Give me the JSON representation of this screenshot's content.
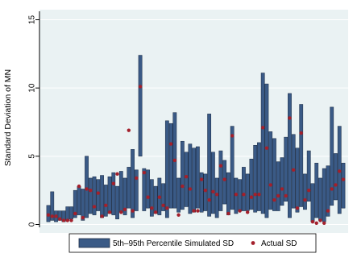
{
  "chart_data": {
    "type": "bar",
    "ylabel": "Standard Deviation of MN",
    "xlabel": "",
    "title": "",
    "ylim": [
      0,
      15
    ],
    "yticks": [
      "0",
      "5",
      "10",
      "15"
    ],
    "grid": true,
    "legend_position": "bottom",
    "colors": {
      "bar_fill": "#3a5a86",
      "bar_stroke": "#1c2c44",
      "point": "#a3202c",
      "plot_bg": "#eaf2f3",
      "grid": "#ffffff"
    },
    "series": [
      {
        "name": "5th–95th Percentile Simulated SD",
        "kind": "range"
      },
      {
        "name": "Actual SD",
        "kind": "point"
      }
    ],
    "bars": [
      [
        0.2,
        1.4,
        0.7
      ],
      [
        0.3,
        2.4,
        0.6
      ],
      [
        0.2,
        1.0,
        0.6
      ],
      [
        0.3,
        1.0,
        0.4
      ],
      [
        0.2,
        1.0,
        0.3
      ],
      [
        0.3,
        1.3,
        0.3
      ],
      [
        0.4,
        1.3,
        0.3
      ],
      [
        0.5,
        2.5,
        0.8
      ],
      [
        0.7,
        2.8,
        2.8
      ],
      [
        0.3,
        2.6,
        0.5
      ],
      [
        0.5,
        5.0,
        2.6
      ],
      [
        0.8,
        3.4,
        2.5
      ],
      [
        0.7,
        3.5,
        1.3
      ],
      [
        1.0,
        3.3,
        2.3
      ],
      [
        0.5,
        3.6,
        0.6
      ],
      [
        0.6,
        2.9,
        1.4
      ],
      [
        0.8,
        3.5,
        0.9
      ],
      [
        0.7,
        3.8,
        3.0
      ],
      [
        0.4,
        2.8,
        3.7
      ],
      [
        0.9,
        3.9,
        0.9
      ],
      [
        0.7,
        3.4,
        1.1
      ],
      [
        1.2,
        4.2,
        6.9
      ],
      [
        0.5,
        5.5,
        1.0
      ],
      [
        1.0,
        4.0,
        3.4
      ],
      [
        5.0,
        12.4,
        10.1
      ],
      [
        1.0,
        4.1,
        3.8
      ],
      [
        1.2,
        4.0,
        2.0
      ],
      [
        0.6,
        3.3,
        1.2
      ],
      [
        0.8,
        2.8,
        0.9
      ],
      [
        0.7,
        3.4,
        2.0
      ],
      [
        1.0,
        3.0,
        1.4
      ],
      [
        0.5,
        7.6,
        1.2
      ],
      [
        1.2,
        7.4,
        5.9
      ],
      [
        1.2,
        8.2,
        4.7
      ],
      [
        0.9,
        3.4,
        0.7
      ],
      [
        1.1,
        6.1,
        2.8
      ],
      [
        1.3,
        5.3,
        3.5
      ],
      [
        0.8,
        5.9,
        2.6
      ],
      [
        0.9,
        5.6,
        1.0
      ],
      [
        1.2,
        5.7,
        1.0
      ],
      [
        0.9,
        3.8,
        3.3
      ],
      [
        1.0,
        3.7,
        2.5
      ],
      [
        0.6,
        8.1,
        1.8
      ],
      [
        0.8,
        5.3,
        2.4
      ],
      [
        0.5,
        3.4,
        2.2
      ],
      [
        1.0,
        5.4,
        4.3
      ],
      [
        1.5,
        4.7,
        3.3
      ],
      [
        0.7,
        3.8,
        0.8
      ],
      [
        1.1,
        7.2,
        6.5
      ],
      [
        0.8,
        3.4,
        2.2
      ],
      [
        1.0,
        3.3,
        1.0
      ],
      [
        1.0,
        4.2,
        2.2
      ],
      [
        1.0,
        3.7,
        0.9
      ],
      [
        1.1,
        4.8,
        2.0
      ],
      [
        0.9,
        5.8,
        2.2
      ],
      [
        1.0,
        6.0,
        2.2
      ],
      [
        0.8,
        11.1,
        7.1
      ],
      [
        0.5,
        10.3,
        5.6
      ],
      [
        1.1,
        6.8,
        2.9
      ],
      [
        1.0,
        6.3,
        1.8
      ],
      [
        1.0,
        4.6,
        2.1
      ],
      [
        1.4,
        4.9,
        2.6
      ],
      [
        1.7,
        6.4,
        2.1
      ],
      [
        0.5,
        9.6,
        7.8
      ],
      [
        1.2,
        6.6,
        4.0
      ],
      [
        0.9,
        5.6,
        1.2
      ],
      [
        1.3,
        8.8,
        6.7
      ],
      [
        1.1,
        3.7,
        1.8
      ],
      [
        1.7,
        5.4,
        2.5
      ],
      [
        0.2,
        3.0,
        0.2
      ],
      [
        0.5,
        4.5,
        0.1
      ],
      [
        0.3,
        3.4,
        0.3
      ],
      [
        0.2,
        4.1,
        0.1
      ],
      [
        0.6,
        4.3,
        1.0
      ],
      [
        1.4,
        8.6,
        2.6
      ],
      [
        1.8,
        5.2,
        2.9
      ],
      [
        0.8,
        7.2,
        3.9
      ],
      [
        1.2,
        4.5,
        3.3
      ]
    ]
  },
  "legend": {
    "range_label": "5th–95th Percentile Simulated SD",
    "point_label": "Actual SD"
  }
}
